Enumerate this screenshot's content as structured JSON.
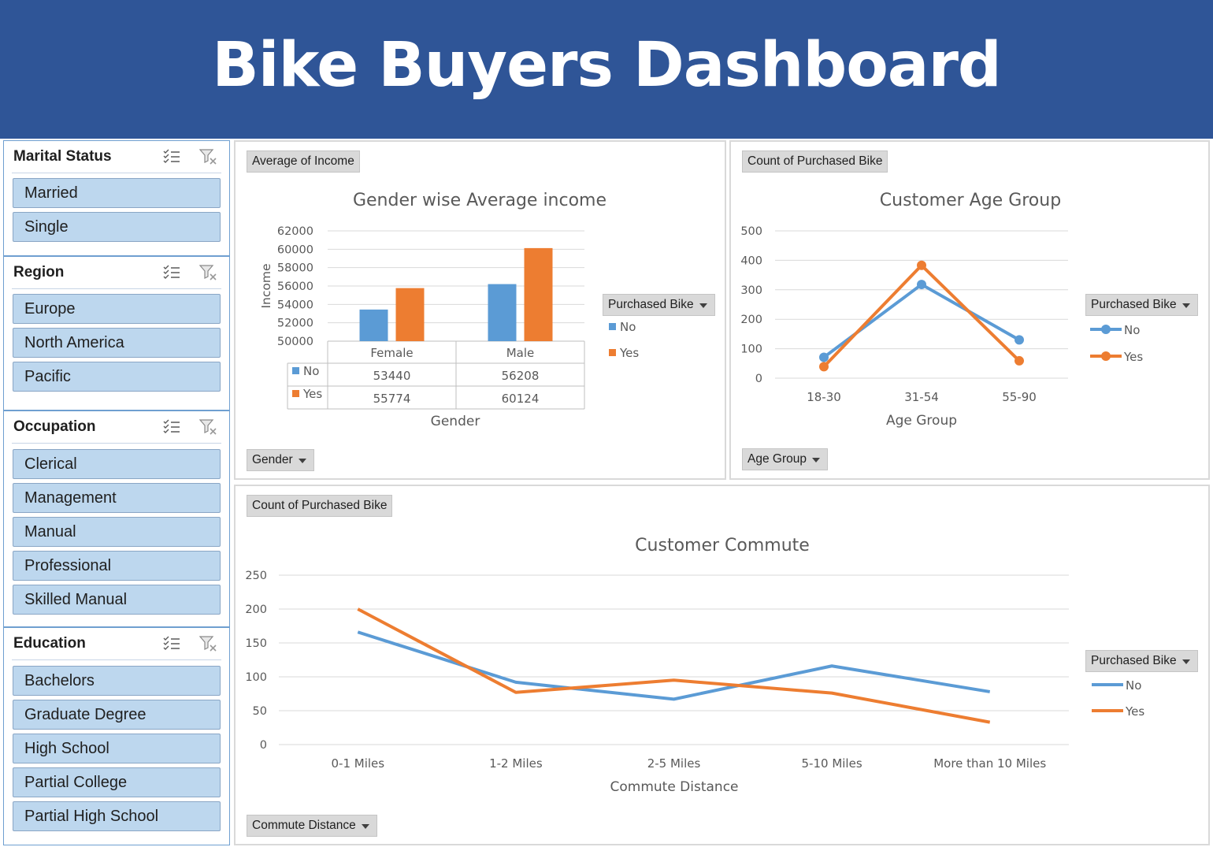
{
  "header": {
    "title": "Bike Buyers Dashboard"
  },
  "colors": {
    "banner": "#2f5597",
    "no": "#5b9bd5",
    "yes": "#ed7d31",
    "slicer_item": "#bdd7ee"
  },
  "slicers": [
    {
      "title": "Marital Status",
      "items": [
        "Married",
        "Single"
      ]
    },
    {
      "title": "Region",
      "items": [
        "Europe",
        "North America",
        "Pacific"
      ]
    },
    {
      "title": "Occupation",
      "items": [
        "Clerical",
        "Management",
        "Manual",
        "Professional",
        "Skilled Manual"
      ]
    },
    {
      "title": "Education",
      "items": [
        "Bachelors",
        "Graduate Degree",
        "High School",
        "Partial College",
        "Partial High School"
      ]
    }
  ],
  "gender_chart": {
    "value_button": "Average of Income",
    "axis_button": "Gender",
    "legend_button": "Purchased Bike",
    "chart_data": {
      "type": "bar",
      "title": "Gender wise Average income",
      "xlabel": "Gender",
      "ylabel": "Income",
      "ylim": [
        50000,
        62000
      ],
      "yticks": [
        "62000",
        "60000",
        "58000",
        "56000",
        "54000",
        "52000",
        "50000"
      ],
      "categories": [
        "Female",
        "Male"
      ],
      "series": [
        {
          "name": "No",
          "values": [
            53440,
            56208
          ]
        },
        {
          "name": "Yes",
          "values": [
            55774,
            60124
          ]
        }
      ],
      "data_table": [
        [
          "53440",
          "56208"
        ],
        [
          "55774",
          "60124"
        ]
      ],
      "legend": "right"
    }
  },
  "age_chart": {
    "value_button": "Count of Purchased Bike",
    "axis_button": "Age Group",
    "legend_button": "Purchased Bike",
    "chart_data": {
      "type": "line",
      "title": "Customer Age Group",
      "xlabel": "Age Group",
      "ylim": [
        0,
        500
      ],
      "yticks": [
        "500",
        "400",
        "300",
        "200",
        "100",
        "0"
      ],
      "categories": [
        "18-30",
        "31-54",
        "55-90"
      ],
      "series": [
        {
          "name": "No",
          "values": [
            71,
            318,
            130
          ]
        },
        {
          "name": "Yes",
          "values": [
            39,
            383,
            59
          ]
        }
      ],
      "legend": "right"
    }
  },
  "commute_chart": {
    "value_button": "Count of Purchased Bike",
    "axis_button": "Commute Distance",
    "legend_button": "Purchased Bike",
    "chart_data": {
      "type": "line",
      "title": "Customer Commute",
      "xlabel": "Commute Distance",
      "ylim": [
        0,
        250
      ],
      "yticks": [
        "250",
        "200",
        "150",
        "100",
        "50",
        "0"
      ],
      "categories": [
        "0-1 Miles",
        "1-2 Miles",
        "2-5 Miles",
        "5-10 Miles",
        "More than 10 Miles"
      ],
      "series": [
        {
          "name": "No",
          "values": [
            166,
            92,
            67,
            116,
            78
          ]
        },
        {
          "name": "Yes",
          "values": [
            200,
            77,
            95,
            76,
            33
          ]
        }
      ],
      "legend": "right"
    }
  }
}
